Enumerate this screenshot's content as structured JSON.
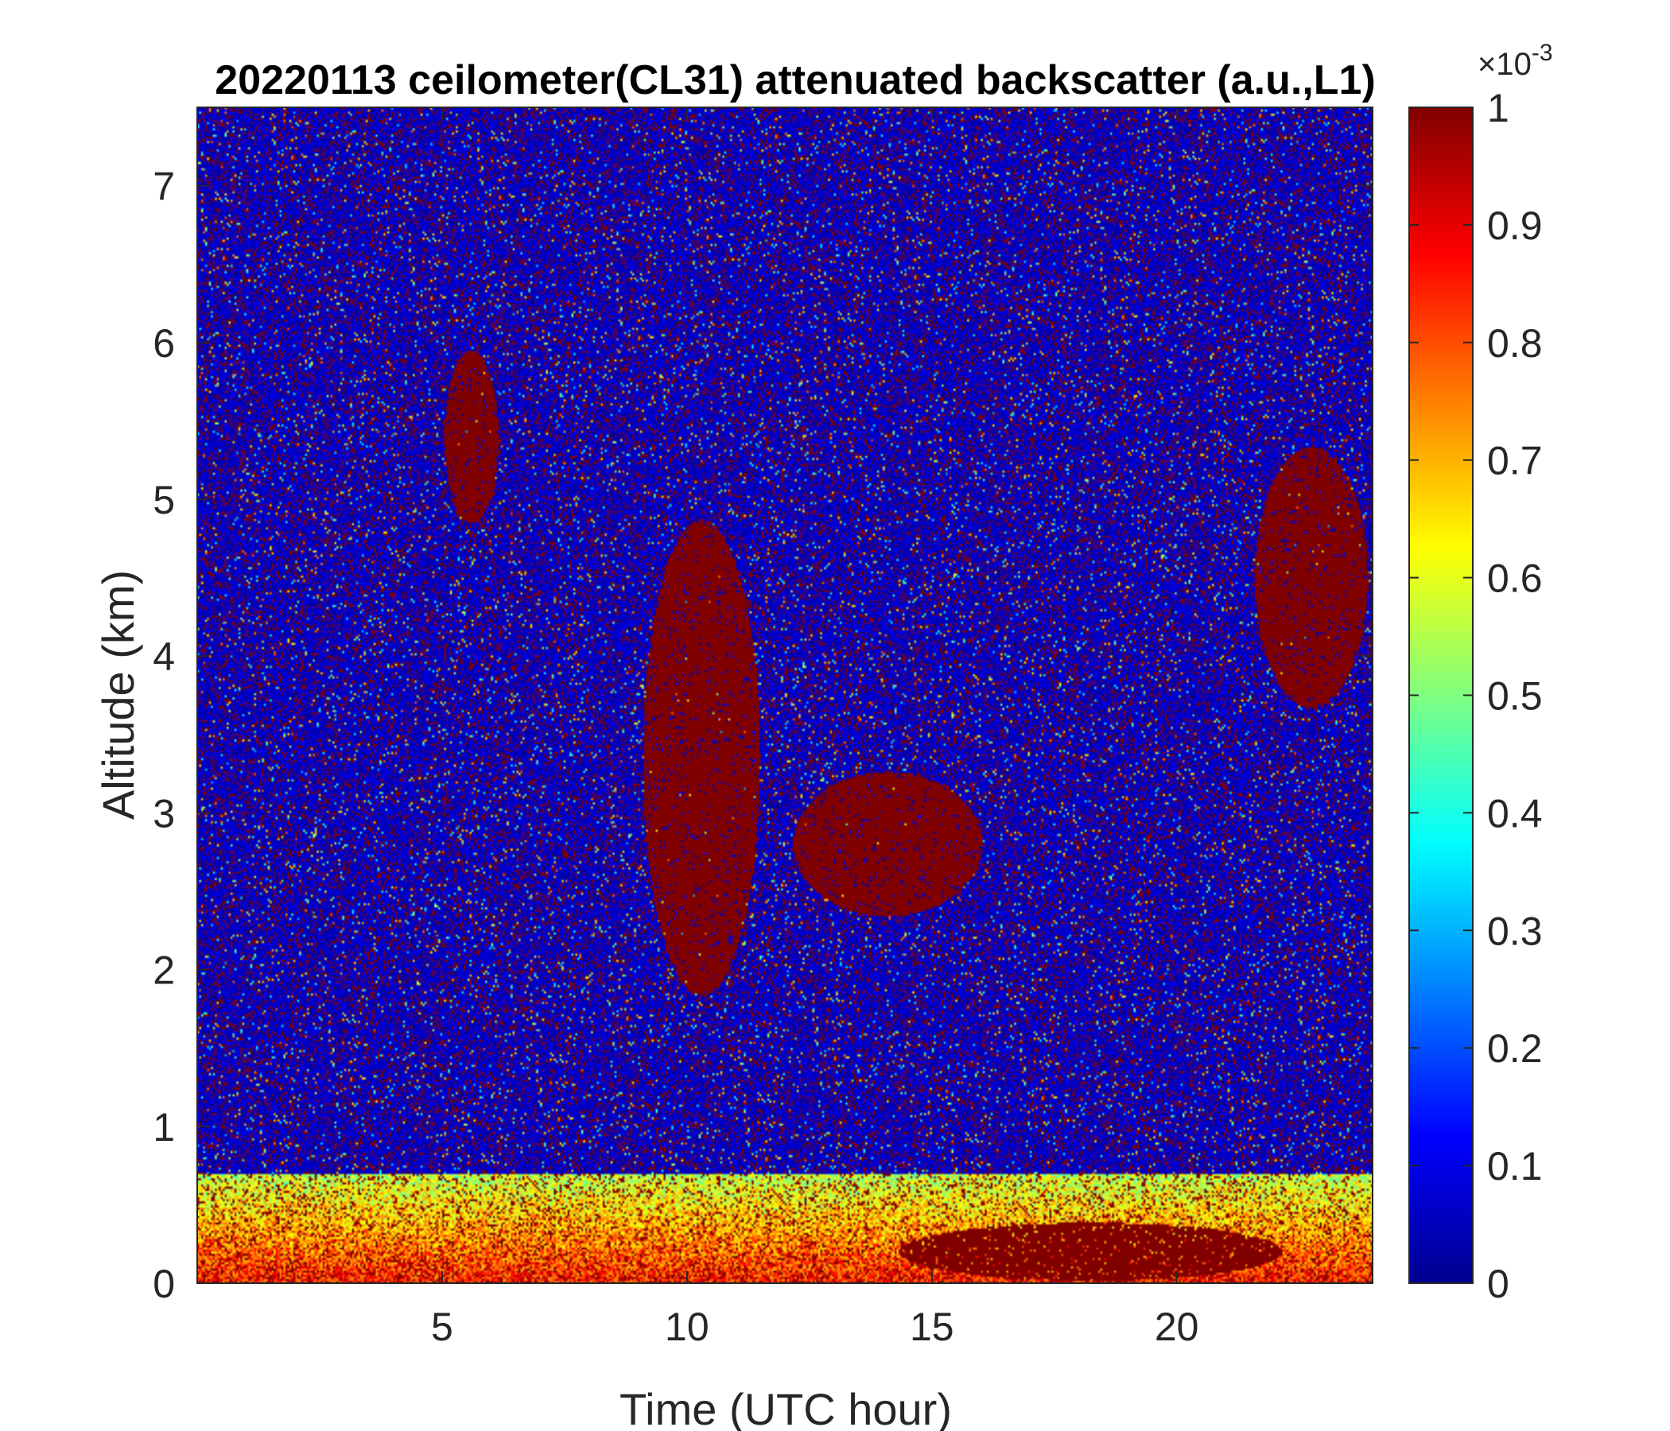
{
  "chart_data": {
    "type": "heatmap",
    "title": "20220113 ceilometer(CL31) attenuated backscatter (a.u.,L1)",
    "xlabel": "Time (UTC hour)",
    "ylabel": "Altitude (km)",
    "xlim": [
      0,
      24
    ],
    "ylim": [
      0,
      7.5
    ],
    "xticks": [
      5,
      10,
      15,
      20
    ],
    "yticks": [
      0,
      1,
      2,
      3,
      4,
      5,
      6,
      7
    ],
    "colorbar": {
      "range": [
        0,
        0.001
      ],
      "ticks": [
        0,
        0.1,
        0.2,
        0.3,
        0.4,
        0.5,
        0.6,
        0.7,
        0.8,
        0.9,
        1
      ],
      "tick_labels": [
        "0",
        "0.1",
        "0.2",
        "0.3",
        "0.4",
        "0.5",
        "0.6",
        "0.7",
        "0.8",
        "0.9",
        "1"
      ],
      "exponent_base": "×10",
      "exponent": "-3",
      "colormap": "jet"
    },
    "features": [
      {
        "time_start": 0,
        "time_end": 24,
        "alt_base": 0.0,
        "alt_top": 0.7,
        "intensity": 0.55
      },
      {
        "time_start": 14,
        "time_end": 22.5,
        "alt_base": 0.0,
        "alt_top": 0.4,
        "intensity": 1.0
      },
      {
        "time_start": 5,
        "time_end": 6.2,
        "alt_base": 4.8,
        "alt_top": 6.0,
        "intensity": 1.0
      },
      {
        "time_start": 9,
        "time_end": 11.6,
        "alt_base": 1.7,
        "alt_top": 5.0,
        "intensity": 1.0
      },
      {
        "time_start": 12,
        "time_end": 16.2,
        "alt_base": 2.3,
        "alt_top": 3.3,
        "intensity": 1.0
      },
      {
        "time_start": 21.5,
        "time_end": 24,
        "alt_base": 3.6,
        "alt_top": 5.4,
        "intensity": 1.0
      }
    ]
  }
}
